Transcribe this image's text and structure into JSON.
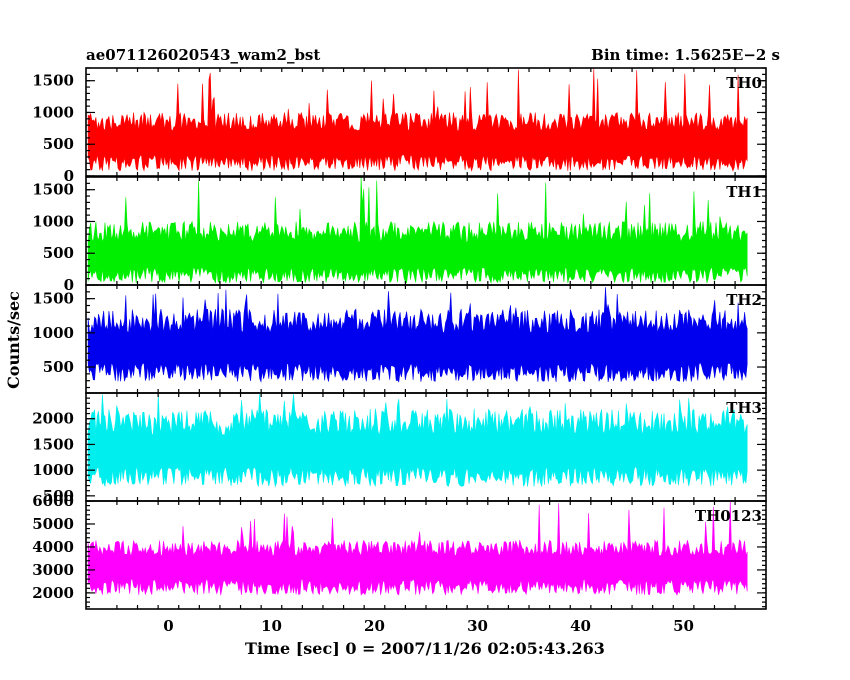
{
  "header": {
    "title_left": "ae071126020543_wam2_bst",
    "title_right": "Bin time: 1.5625E−2 s"
  },
  "chart_data": {
    "type": "line",
    "subtype": "stacked light-curve histogram panels",
    "xlabel": "Time [sec] 0 = 2007/11/26 02:05:43.263",
    "ylabel": "Counts/sec",
    "xlim": [
      -8,
      58
    ],
    "x_tick_labels": [
      "0",
      "10",
      "20",
      "30",
      "40",
      "50"
    ],
    "x_ticks": [
      0,
      10,
      20,
      30,
      40,
      50
    ],
    "data_range": [
      -7.8,
      56.2
    ],
    "bin_time": 0.015625,
    "panels": [
      {
        "name": "TH0",
        "color": "#ff0000",
        "ylim": [
          0,
          1700
        ],
        "y_ticks": [
          0,
          500,
          1000,
          1500
        ],
        "y_tick_labels": [
          "0",
          "500",
          "1000",
          "1500"
        ],
        "typical_low": 80,
        "typical_high": 1000,
        "max_peak": 1700,
        "median": 550
      },
      {
        "name": "TH1",
        "color": "#00ee00",
        "ylim": [
          0,
          1700
        ],
        "y_ticks": [
          0,
          500,
          1000,
          1500
        ],
        "y_tick_labels": [
          "0",
          "500",
          "1000",
          "1500"
        ],
        "typical_low": 30,
        "typical_high": 1000,
        "max_peak": 1700,
        "median": 480
      },
      {
        "name": "TH2",
        "color": "#0000ee",
        "ylim": [
          120,
          1700
        ],
        "y_ticks": [
          500,
          1000,
          1500
        ],
        "y_tick_labels": [
          "500",
          "1000",
          "1500"
        ],
        "typical_low": 280,
        "typical_high": 1350,
        "max_peak": 1700,
        "median": 800
      },
      {
        "name": "TH3",
        "color": "#00eeee",
        "ylim": [
          400,
          2500
        ],
        "y_ticks": [
          500,
          1000,
          1500,
          2000
        ],
        "y_tick_labels": [
          "500",
          "1000",
          "1500",
          "2000"
        ],
        "typical_low": 680,
        "typical_high": 2200,
        "max_peak": 2500,
        "median": 1400
      },
      {
        "name": "TH0123",
        "color": "#ff00ff",
        "ylim": [
          1300,
          6000
        ],
        "y_ticks": [
          2000,
          3000,
          4000,
          5000,
          6000
        ],
        "y_tick_labels": [
          "2000",
          "3000",
          "4000",
          "5000",
          "6000"
        ],
        "typical_low": 1900,
        "typical_high": 4300,
        "max_peak": 6000,
        "median": 3200
      }
    ]
  }
}
